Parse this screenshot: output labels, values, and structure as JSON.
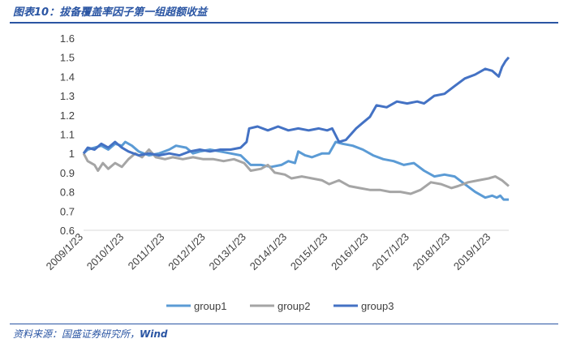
{
  "figure": {
    "title": "图表10：拔备覆盖率因子第一组超额收益",
    "source_prefix": "资料来源：国盛证券研究所，",
    "source_name": "Wind"
  },
  "colors": {
    "accent": "#2a55a3",
    "group1": "#5b9bd5",
    "group2": "#a5a5a5",
    "group3": "#4472c4"
  },
  "chart_data": {
    "type": "line",
    "title": "",
    "xlabel": "",
    "ylabel": "",
    "ylim": [
      0.6,
      1.6
    ],
    "yticks": [
      "0.6",
      "0.7",
      "0.8",
      "0.9",
      "1",
      "1.1",
      "1.2",
      "1.3",
      "1.4",
      "1.5",
      "1.6"
    ],
    "xlim": [
      "2009/1/23",
      "2019/6/30"
    ],
    "xticks": [
      "2009/1/23",
      "2010/1/23",
      "2011/1/23",
      "2012/1/23",
      "2013/1/23",
      "2014/1/23",
      "2015/1/23",
      "2016/1/23",
      "2017/1/23",
      "2018/1/23",
      "2019/1/23"
    ],
    "grid": false,
    "legend": "bottom",
    "series": [
      {
        "name": "group1",
        "color": "#5b9bd5",
        "points": [
          [
            "2009/1/23",
            1.0
          ],
          [
            "2009/3/1",
            1.02
          ],
          [
            "2009/5/1",
            1.03
          ],
          [
            "2009/7/1",
            1.04
          ],
          [
            "2009/9/1",
            1.02
          ],
          [
            "2009/11/1",
            1.05
          ],
          [
            "2010/1/1",
            1.04
          ],
          [
            "2010/2/1",
            1.06
          ],
          [
            "2010/4/1",
            1.04
          ],
          [
            "2010/6/1",
            1.01
          ],
          [
            "2010/9/1",
            0.99
          ],
          [
            "2010/12/1",
            1.0
          ],
          [
            "2011/3/1",
            1.02
          ],
          [
            "2011/5/1",
            1.04
          ],
          [
            "2011/8/1",
            1.03
          ],
          [
            "2011/10/1",
            1.0
          ],
          [
            "2011/12/1",
            1.01
          ],
          [
            "2012/3/1",
            1.02
          ],
          [
            "2012/6/1",
            1.01
          ],
          [
            "2012/9/1",
            1.0
          ],
          [
            "2012/12/1",
            0.99
          ],
          [
            "2013/3/1",
            0.94
          ],
          [
            "2013/6/1",
            0.94
          ],
          [
            "2013/9/1",
            0.93
          ],
          [
            "2013/12/1",
            0.94
          ],
          [
            "2014/2/1",
            0.96
          ],
          [
            "2014/4/1",
            0.95
          ],
          [
            "2014/5/1",
            1.01
          ],
          [
            "2014/7/1",
            0.99
          ],
          [
            "2014/9/1",
            0.98
          ],
          [
            "2014/12/1",
            1.0
          ],
          [
            "2015/2/1",
            1.0
          ],
          [
            "2015/4/1",
            1.06
          ],
          [
            "2015/6/1",
            1.05
          ],
          [
            "2015/9/1",
            1.04
          ],
          [
            "2015/12/1",
            1.02
          ],
          [
            "2016/3/1",
            0.99
          ],
          [
            "2016/6/1",
            0.97
          ],
          [
            "2016/9/1",
            0.96
          ],
          [
            "2016/12/1",
            0.94
          ],
          [
            "2017/3/1",
            0.95
          ],
          [
            "2017/6/1",
            0.91
          ],
          [
            "2017/9/1",
            0.88
          ],
          [
            "2017/12/1",
            0.89
          ],
          [
            "2018/3/1",
            0.88
          ],
          [
            "2018/6/1",
            0.84
          ],
          [
            "2018/9/1",
            0.8
          ],
          [
            "2018/12/1",
            0.77
          ],
          [
            "2019/2/1",
            0.78
          ],
          [
            "2019/3/15",
            0.77
          ],
          [
            "2019/4/15",
            0.78
          ],
          [
            "2019/5/15",
            0.76
          ],
          [
            "2019/6/30",
            0.76
          ]
        ]
      },
      {
        "name": "group2",
        "color": "#a5a5a5",
        "points": [
          [
            "2009/1/23",
            1.0
          ],
          [
            "2009/3/1",
            0.96
          ],
          [
            "2009/5/1",
            0.94
          ],
          [
            "2009/6/1",
            0.91
          ],
          [
            "2009/7/15",
            0.95
          ],
          [
            "2009/9/1",
            0.92
          ],
          [
            "2009/11/1",
            0.95
          ],
          [
            "2010/1/1",
            0.93
          ],
          [
            "2010/3/1",
            0.97
          ],
          [
            "2010/5/1",
            1.0
          ],
          [
            "2010/7/1",
            0.98
          ],
          [
            "2010/9/1",
            1.02
          ],
          [
            "2010/11/1",
            0.98
          ],
          [
            "2011/1/23",
            0.97
          ],
          [
            "2011/4/1",
            0.98
          ],
          [
            "2011/7/1",
            0.97
          ],
          [
            "2011/10/1",
            0.98
          ],
          [
            "2012/1/1",
            0.97
          ],
          [
            "2012/4/1",
            0.97
          ],
          [
            "2012/7/1",
            0.96
          ],
          [
            "2012/10/1",
            0.97
          ],
          [
            "2013/1/1",
            0.95
          ],
          [
            "2013/3/1",
            0.91
          ],
          [
            "2013/6/1",
            0.92
          ],
          [
            "2013/8/1",
            0.94
          ],
          [
            "2013/10/1",
            0.9
          ],
          [
            "2014/1/1",
            0.89
          ],
          [
            "2014/3/1",
            0.87
          ],
          [
            "2014/6/1",
            0.88
          ],
          [
            "2014/9/1",
            0.87
          ],
          [
            "2014/12/1",
            0.86
          ],
          [
            "2015/2/1",
            0.84
          ],
          [
            "2015/5/1",
            0.86
          ],
          [
            "2015/8/1",
            0.83
          ],
          [
            "2015/11/1",
            0.82
          ],
          [
            "2016/2/1",
            0.81
          ],
          [
            "2016/5/1",
            0.81
          ],
          [
            "2016/8/1",
            0.8
          ],
          [
            "2016/11/1",
            0.8
          ],
          [
            "2017/2/1",
            0.79
          ],
          [
            "2017/5/1",
            0.81
          ],
          [
            "2017/8/1",
            0.85
          ],
          [
            "2017/11/1",
            0.84
          ],
          [
            "2018/2/1",
            0.82
          ],
          [
            "2018/4/1",
            0.83
          ],
          [
            "2018/7/1",
            0.85
          ],
          [
            "2018/10/1",
            0.86
          ],
          [
            "2019/1/1",
            0.87
          ],
          [
            "2019/3/1",
            0.88
          ],
          [
            "2019/5/1",
            0.86
          ],
          [
            "2019/6/30",
            0.83
          ]
        ]
      },
      {
        "name": "group3",
        "color": "#4472c4",
        "points": [
          [
            "2009/1/23",
            1.0
          ],
          [
            "2009/3/1",
            1.03
          ],
          [
            "2009/5/1",
            1.02
          ],
          [
            "2009/7/1",
            1.05
          ],
          [
            "2009/9/1",
            1.03
          ],
          [
            "2009/11/1",
            1.06
          ],
          [
            "2010/1/1",
            1.03
          ],
          [
            "2010/3/1",
            1.01
          ],
          [
            "2010/6/1",
            0.99
          ],
          [
            "2010/9/1",
            1.0
          ],
          [
            "2010/12/1",
            0.99
          ],
          [
            "2011/3/1",
            1.0
          ],
          [
            "2011/6/1",
            0.99
          ],
          [
            "2011/9/1",
            1.01
          ],
          [
            "2011/12/1",
            1.02
          ],
          [
            "2012/3/1",
            1.01
          ],
          [
            "2012/6/1",
            1.02
          ],
          [
            "2012/9/1",
            1.02
          ],
          [
            "2012/12/1",
            1.03
          ],
          [
            "2013/1/23",
            1.06
          ],
          [
            "2013/2/15",
            1.13
          ],
          [
            "2013/5/1",
            1.14
          ],
          [
            "2013/8/1",
            1.12
          ],
          [
            "2013/11/1",
            1.14
          ],
          [
            "2014/2/1",
            1.12
          ],
          [
            "2014/5/1",
            1.13
          ],
          [
            "2014/8/1",
            1.12
          ],
          [
            "2014/11/1",
            1.13
          ],
          [
            "2015/1/15",
            1.12
          ],
          [
            "2015/3/1",
            1.13
          ],
          [
            "2015/5/1",
            1.06
          ],
          [
            "2015/7/1",
            1.07
          ],
          [
            "2015/10/1",
            1.13
          ],
          [
            "2015/12/1",
            1.16
          ],
          [
            "2016/2/1",
            1.19
          ],
          [
            "2016/4/1",
            1.25
          ],
          [
            "2016/7/1",
            1.24
          ],
          [
            "2016/10/1",
            1.27
          ],
          [
            "2017/1/1",
            1.26
          ],
          [
            "2017/4/1",
            1.27
          ],
          [
            "2017/6/1",
            1.26
          ],
          [
            "2017/9/1",
            1.3
          ],
          [
            "2017/12/1",
            1.31
          ],
          [
            "2018/3/1",
            1.35
          ],
          [
            "2018/6/1",
            1.39
          ],
          [
            "2018/9/1",
            1.41
          ],
          [
            "2018/12/1",
            1.44
          ],
          [
            "2019/2/1",
            1.43
          ],
          [
            "2019/4/1",
            1.4
          ],
          [
            "2019/5/1",
            1.45
          ],
          [
            "2019/6/1",
            1.48
          ],
          [
            "2019/6/30",
            1.5
          ]
        ]
      }
    ]
  }
}
